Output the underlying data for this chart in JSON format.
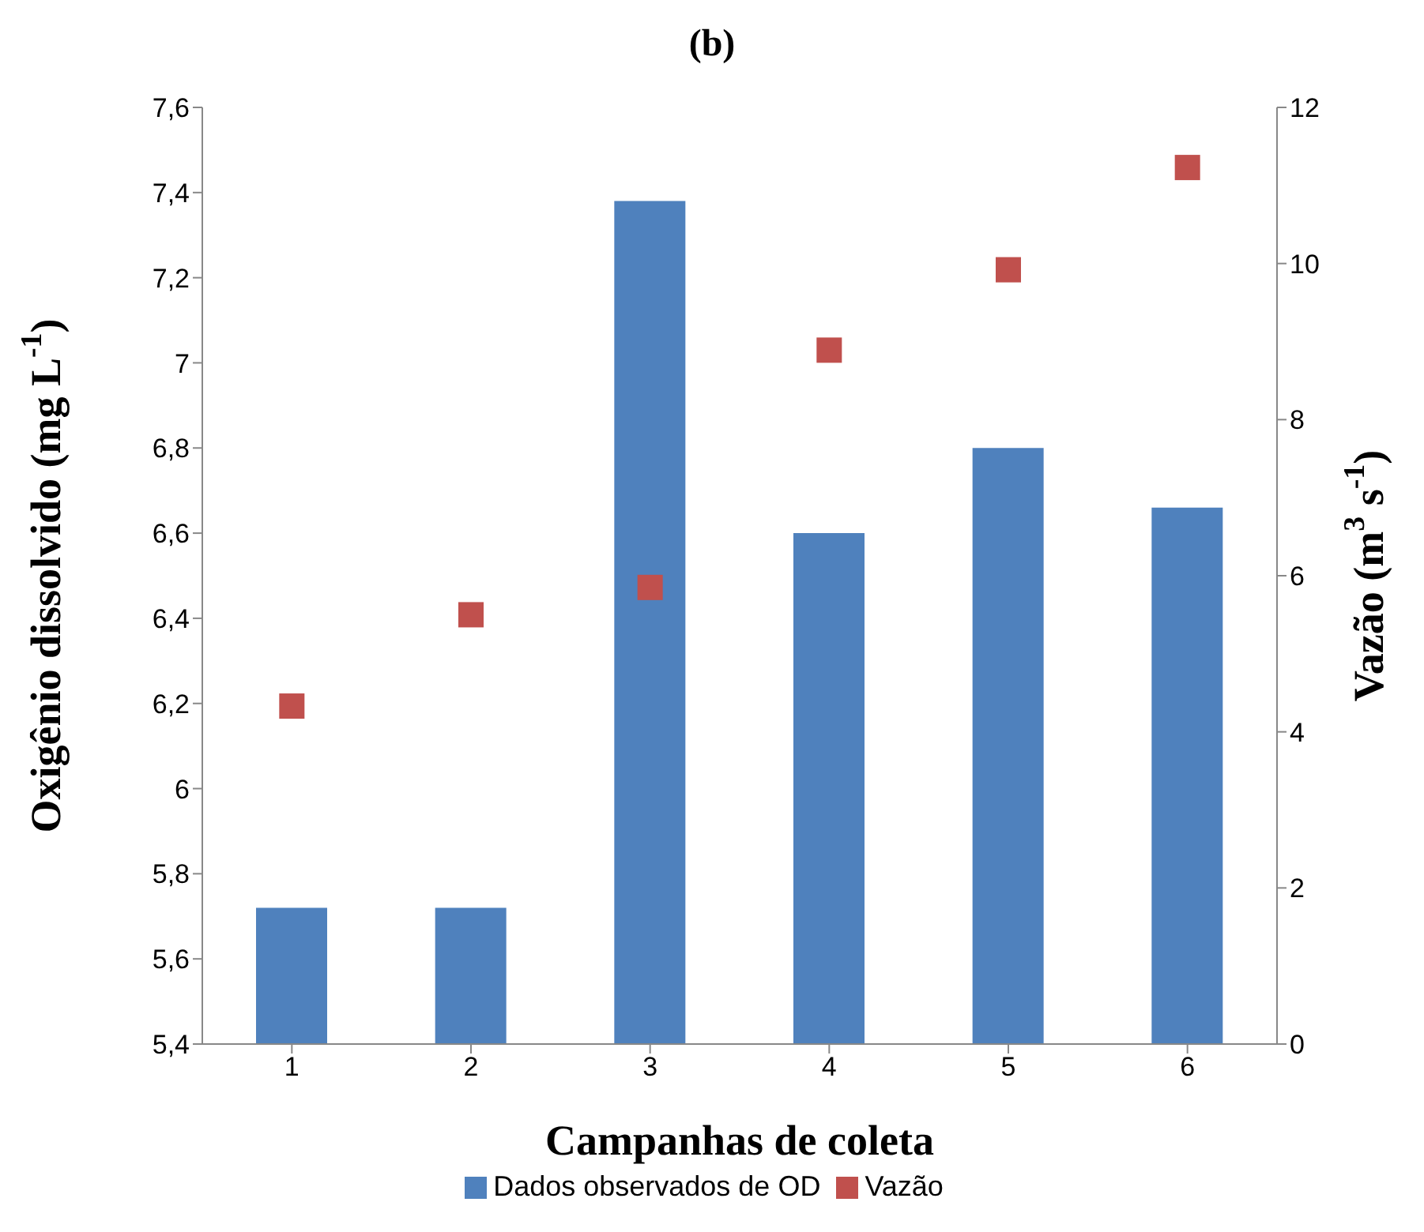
{
  "chart_data": {
    "type": "bar",
    "title": "(b)",
    "xlabel": "Campanhas de coleta",
    "ylabel": "Oxigênio dissolvido (mg  L$^{-1}$)",
    "y2label": "Vazão (m$^{3}$ s$^{-1}$)",
    "categories": [
      "1",
      "2",
      "3",
      "4",
      "5",
      "6"
    ],
    "series": [
      {
        "name": "Dados observados de OD",
        "color": "#4f81bd",
        "values": [
          5.72,
          5.72,
          7.38,
          6.6,
          6.8,
          6.66
        ]
      },
      {
        "name": "Vazão",
        "type": "scatter",
        "axis": "y2",
        "color": "#c0504d",
        "values": [
          4.33,
          5.5,
          5.85,
          8.89,
          9.92,
          11.23
        ]
      }
    ],
    "ylim": [
      5.4,
      7.6
    ],
    "yticks": [
      {
        "value": 5.4,
        "label": "5,4"
      },
      {
        "value": 5.6,
        "label": "5,6"
      },
      {
        "value": 5.8,
        "label": "5,8"
      },
      6,
      {
        "value": 6.2,
        "label": "6,2"
      },
      {
        "value": 6.4,
        "label": "6,4"
      },
      {
        "value": 6.6,
        "label": "6,6"
      },
      {
        "value": 6.8,
        "label": "6,8"
      },
      7,
      {
        "value": 7.2,
        "label": "7,2"
      },
      {
        "value": 7.4,
        "label": "7,4"
      },
      {
        "value": 7.6,
        "label": "7,6"
      }
    ],
    "y2lim": [
      0,
      12
    ],
    "y2ticks": [
      0,
      2,
      4,
      6,
      8,
      10,
      12
    ],
    "marker": "square",
    "legend": "bottom",
    "grid": false
  }
}
